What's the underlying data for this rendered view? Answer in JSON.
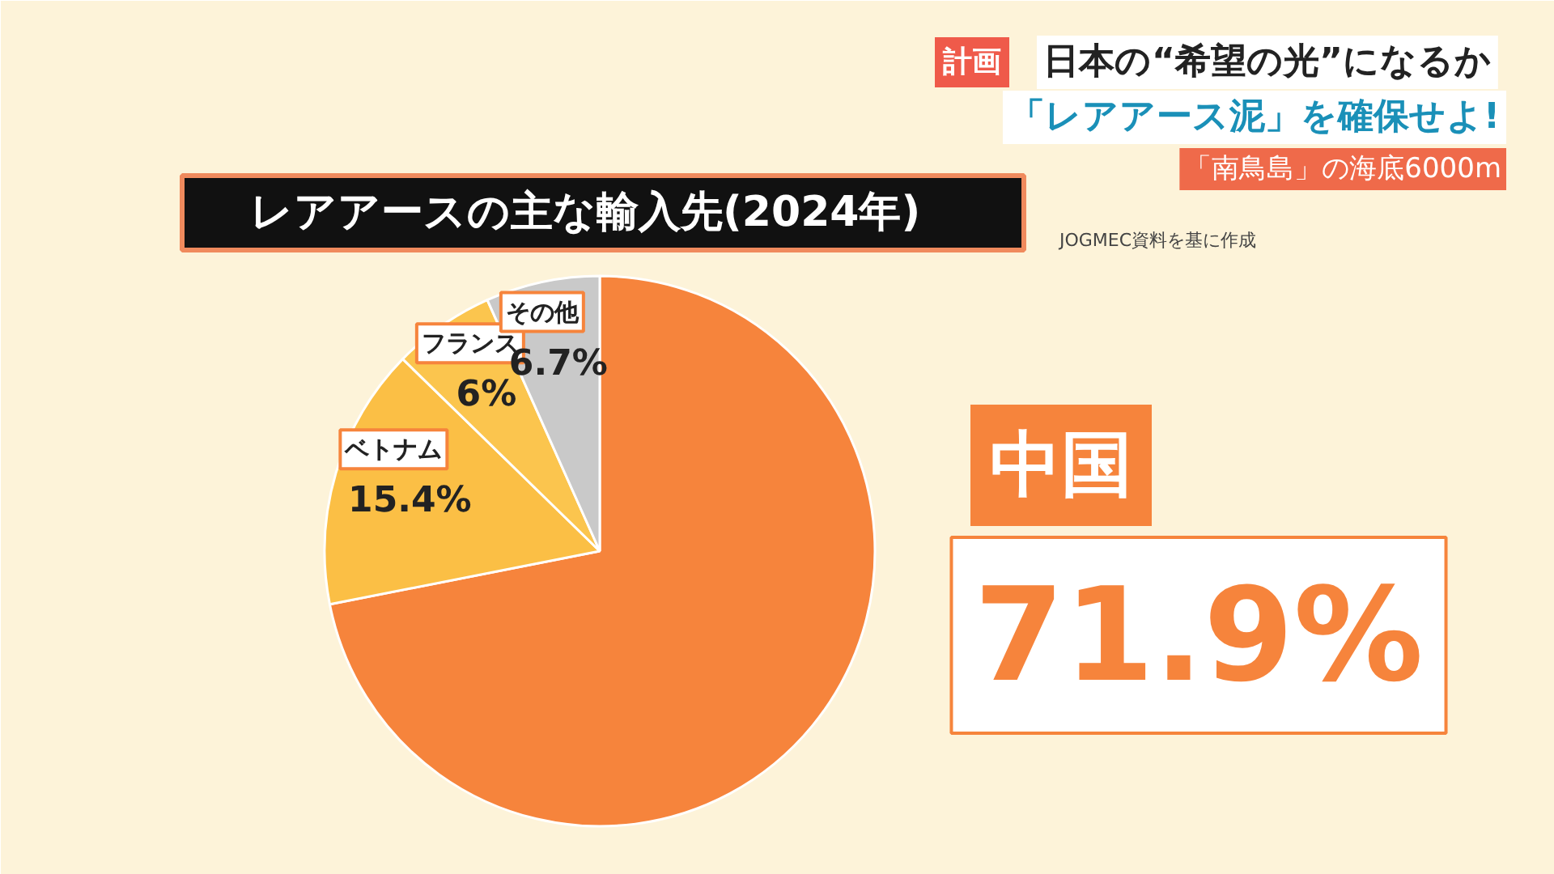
{
  "chart_data": {
    "type": "pie",
    "title": "レアアースの主な輸入先(2024年)",
    "categories": [
      "中国",
      "ベトナム",
      "フランス",
      "その他"
    ],
    "values": [
      71.9,
      15.4,
      6,
      6.7
    ],
    "colors": [
      "#f6843c",
      "#fbbf45",
      "#fbc54e",
      "#c9c9c9"
    ],
    "value_labels": [
      "71.9%",
      "15.4%",
      "6%",
      "6.7%"
    ],
    "annotations": [
      "計画",
      "日本の“希望の光”になるか",
      "「レアアース泥」を確保せよ!",
      "「南鳥島」の海底6000m",
      "JOGMEC資料を基に作成"
    ],
    "legend": false
  }
}
